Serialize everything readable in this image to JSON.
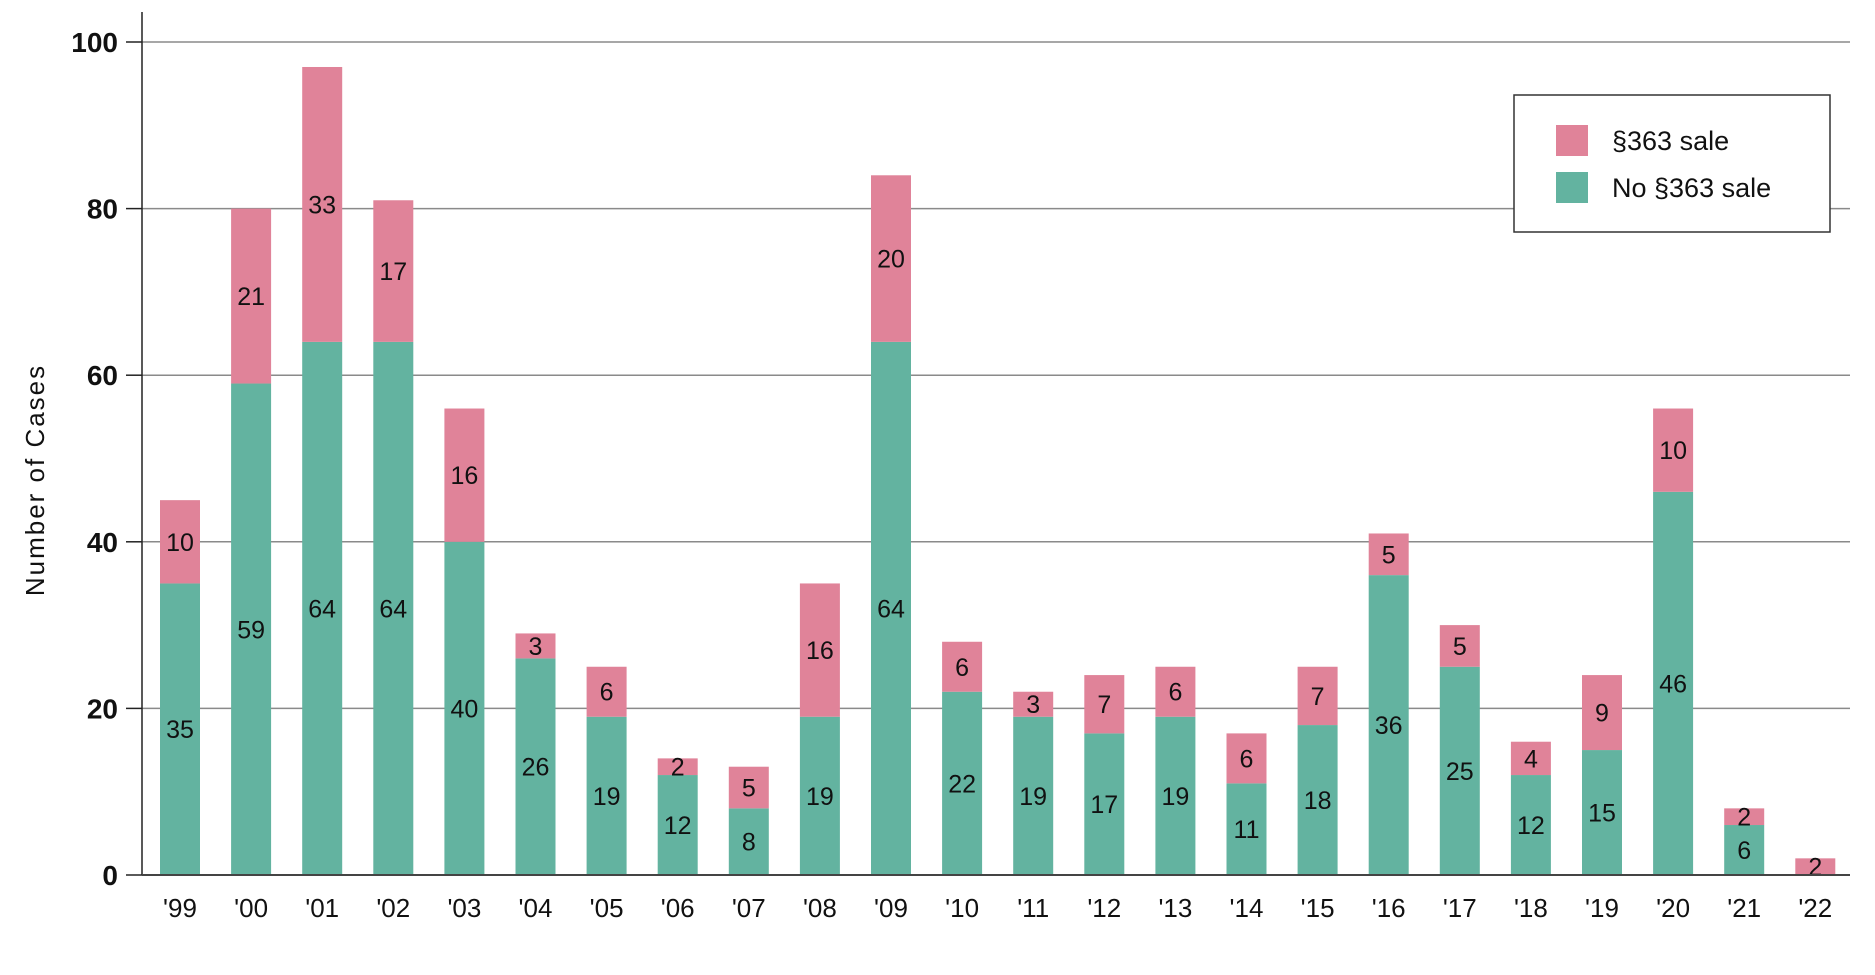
{
  "chart_data": {
    "type": "bar",
    "stacked": true,
    "title": "",
    "xlabel": "",
    "ylabel": "Number of Cases",
    "ylim": [
      0,
      100
    ],
    "yticks": [
      0,
      20,
      40,
      60,
      80,
      100
    ],
    "grid": true,
    "legend_position": "top-right",
    "categories": [
      "'99",
      "'00",
      "'01",
      "'02",
      "'03",
      "'04",
      "'05",
      "'06",
      "'07",
      "'08",
      "'09",
      "'10",
      "'11",
      "'12",
      "'13",
      "'14",
      "'15",
      "'16",
      "'17",
      "'18",
      "'19",
      "'20",
      "'21",
      "'22"
    ],
    "series": [
      {
        "name": "No §363 sale",
        "color": "#63b3a0",
        "values": [
          35,
          59,
          64,
          64,
          40,
          26,
          19,
          12,
          8,
          19,
          64,
          22,
          19,
          17,
          19,
          11,
          18,
          36,
          25,
          12,
          15,
          46,
          6,
          0
        ]
      },
      {
        "name": "§363 sale",
        "color": "#e08399",
        "values": [
          10,
          21,
          33,
          17,
          16,
          3,
          6,
          2,
          5,
          16,
          20,
          6,
          3,
          7,
          6,
          6,
          7,
          5,
          5,
          4,
          9,
          10,
          2,
          2
        ]
      }
    ],
    "legend_order": [
      "§363 sale",
      "No §363 sale"
    ]
  }
}
